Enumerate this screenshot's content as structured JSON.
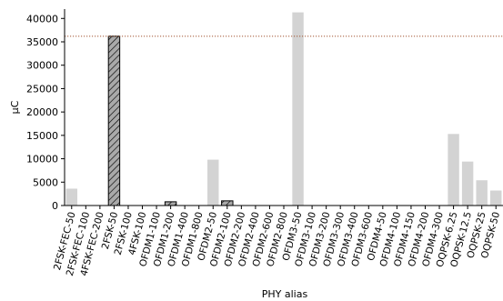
{
  "chart_data": {
    "type": "bar",
    "xlabel": "PHY alias",
    "ylabel": "μC",
    "ylim": [
      0,
      42000
    ],
    "yticks": [
      0,
      5000,
      10000,
      15000,
      20000,
      25000,
      30000,
      35000,
      40000
    ],
    "grid": false,
    "categories": [
      "2FSK-FEC-50",
      "2FSK-FEC-100",
      "4FSK-FEC-200",
      "2FSK-50",
      "2FSK-100",
      "4FSK-100",
      "OFDM1-100",
      "OFDM1-200",
      "OFDM1-400",
      "OFDM1-800",
      "OFDM2-50",
      "OFDM2-100",
      "OFDM2-200",
      "OFDM2-400",
      "OFDM2-600",
      "OFDM2-800",
      "OFDM3-50",
      "OFDM3-100",
      "OFDM3-200",
      "OFDM3-300",
      "OFDM3-400",
      "OFDM3-600",
      "OFDM4-50",
      "OFDM4-100",
      "OFDM4-150",
      "OFDM4-200",
      "OFDM4-300",
      "OQPSK-6.25",
      "OQPSK-12.5",
      "OQPSK-25",
      "OQPSK-50"
    ],
    "values": [
      3600,
      0,
      0,
      36200,
      0,
      0,
      0,
      800,
      0,
      0,
      9800,
      1000,
      0,
      0,
      0,
      0,
      41300,
      0,
      0,
      0,
      0,
      0,
      0,
      0,
      0,
      0,
      0,
      15300,
      9400,
      5400,
      3200
    ],
    "highlighted": [
      false,
      false,
      false,
      true,
      false,
      false,
      false,
      true,
      false,
      false,
      false,
      true,
      false,
      false,
      false,
      false,
      false,
      false,
      false,
      false,
      false,
      false,
      false,
      false,
      false,
      false,
      false,
      false,
      false,
      false,
      false
    ],
    "reference_line": 36200,
    "colors": {
      "bar": "#d3d3d3",
      "highlight_bar": "#a9a9a9",
      "highlight_edge": "#000000",
      "reference_line": "#a0522d",
      "axis": "#000000"
    }
  }
}
